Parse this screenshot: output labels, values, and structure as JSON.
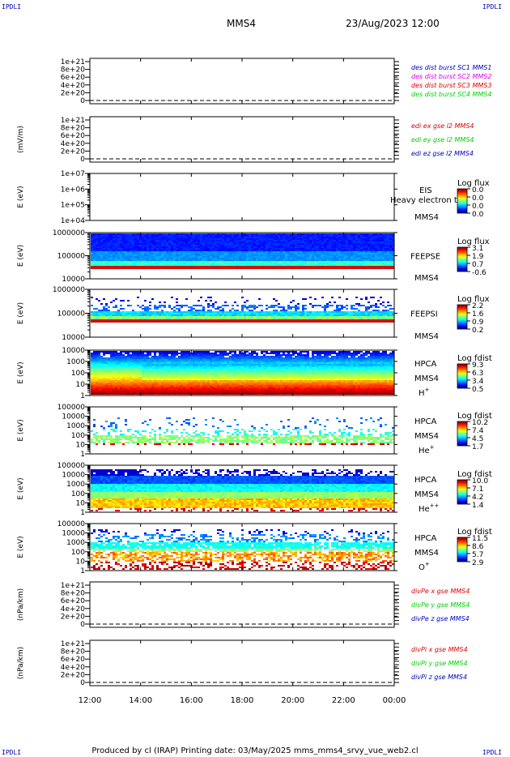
{
  "corner_label": "IPDLI",
  "header": {
    "spacecraft": "MMS4",
    "datetime": "23/Aug/2023 12:00"
  },
  "footer": {
    "text": "Produced by cl (IRAP)    Printing date: 03/May/2025    mms_mms4_srvy_vue_web2.cl"
  },
  "colors": {
    "axis": "#000000",
    "red": "#e00000",
    "green": "#00d000",
    "blue": "#0000c0",
    "magenta": "#e000e0"
  },
  "chart_data": {
    "type": "multi-panel time series / spectrogram",
    "x_ticks": [
      "12:00",
      "14:00",
      "16:00",
      "18:00",
      "20:00",
      "22:00",
      "00:00"
    ],
    "panels": [
      {
        "id": "p1",
        "kind": "line",
        "ylabel": "",
        "yticks": [
          "1e+21",
          "8e+20",
          "6e+20",
          "4e+20",
          "2e+20",
          "0"
        ],
        "legend": [
          {
            "text": "des dist burst SC1 MMS1",
            "color": "#0000c0"
          },
          {
            "text": "des dist burst SC2 MMS2",
            "color": "#e000e0"
          },
          {
            "text": "des dist burst SC3 MMS3",
            "color": "#e00000"
          },
          {
            "text": "des dist burst SC4 MMS4",
            "color": "#00d000"
          }
        ]
      },
      {
        "id": "p2",
        "kind": "line",
        "ylabel": "(mV/m)",
        "yticks": [
          "1e+21",
          "8e+20",
          "6e+20",
          "4e+20",
          "2e+20",
          "0"
        ],
        "legend": [
          {
            "text": "edi ex gse l2 MMS4",
            "color": "#e00000"
          },
          {
            "text": "edi ey gse l2 MMS4",
            "color": "#00d000"
          },
          {
            "text": "edi ez gse l2 MMS4",
            "color": "#0000c0"
          }
        ]
      },
      {
        "id": "p3",
        "kind": "spectrogram",
        "ylabel": "E (eV)",
        "yticks": [
          "1e+07",
          "1e+06",
          "1e+05",
          "1e+04"
        ],
        "instrument": [
          "EIS",
          "MMS4"
        ],
        "overlay_text": "Heavy electron tof",
        "cbar_title": "Log flux",
        "cbar_ticks": [
          "0.0",
          "0.0",
          "0.0",
          "0.0"
        ],
        "empty": true
      },
      {
        "id": "p4",
        "kind": "spectrogram",
        "ylabel": "E (eV)",
        "yticks": [
          "1000000",
          "100000",
          "10000"
        ],
        "instrument": [
          "FEEPSE",
          "MMS4"
        ],
        "cbar_title": "Log flux",
        "cbar_ticks": [
          "3.1",
          "1.9",
          "0.7",
          "-0.6"
        ],
        "empty": false
      },
      {
        "id": "p5",
        "kind": "spectrogram",
        "ylabel": "E (eV)",
        "yticks": [
          "1000000",
          "100000",
          "10000"
        ],
        "instrument": [
          "FEEPSI",
          "MMS4"
        ],
        "cbar_title": "Log flux",
        "cbar_ticks": [
          "2.2",
          "1.6",
          "0.9",
          "0.2"
        ],
        "empty": false
      },
      {
        "id": "p6",
        "kind": "spectrogram",
        "ylabel": "E (eV)",
        "yticks": [
          "10000",
          "1000",
          "100",
          "10",
          "1"
        ],
        "instrument": [
          "HPCA",
          "MMS4"
        ],
        "species": "H",
        "charge": "+",
        "cbar_title": "Log fdist",
        "cbar_ticks": [
          "9.3",
          "6.3",
          "3.4",
          "0.5"
        ],
        "empty": false
      },
      {
        "id": "p7",
        "kind": "spectrogram",
        "ylabel": "E (eV)",
        "yticks": [
          "100000",
          "10000",
          "1000",
          "100",
          "10",
          "1"
        ],
        "instrument": [
          "HPCA",
          "MMS4"
        ],
        "species": "He",
        "charge": "+",
        "cbar_title": "Log fdist",
        "cbar_ticks": [
          "10.2",
          "7.4",
          "4.5",
          "1.7"
        ],
        "empty": false
      },
      {
        "id": "p8",
        "kind": "spectrogram",
        "ylabel": "E (eV)",
        "yticks": [
          "100000",
          "10000",
          "1000",
          "100",
          "10",
          "1"
        ],
        "instrument": [
          "HPCA",
          "MMS4"
        ],
        "species": "He",
        "charge": "++",
        "cbar_title": "Log fdist",
        "cbar_ticks": [
          "10.0",
          "7.1",
          "4.2",
          "1.4"
        ],
        "empty": false
      },
      {
        "id": "p9",
        "kind": "spectrogram",
        "ylabel": "E (eV)",
        "yticks": [
          "100000",
          "10000",
          "1000",
          "100",
          "10",
          "1"
        ],
        "instrument": [
          "HPCA",
          "MMS4"
        ],
        "species": "O",
        "charge": "+",
        "cbar_title": "Log fdist",
        "cbar_ticks": [
          "11.5",
          "8.6",
          "5.7",
          "2.9"
        ],
        "empty": false
      },
      {
        "id": "p10",
        "kind": "line",
        "ylabel": "(nPa/km)",
        "yticks": [
          "1e+21",
          "8e+20",
          "6e+20",
          "4e+20",
          "2e+20",
          "0"
        ],
        "legend": [
          {
            "text": "divPe x gse MMS4",
            "color": "#e00000"
          },
          {
            "text": "divPe y gse MMS4",
            "color": "#00d000"
          },
          {
            "text": "divPe z gse MMS4",
            "color": "#0000c0"
          }
        ]
      },
      {
        "id": "p11",
        "kind": "line",
        "ylabel": "(nPa/km)",
        "yticks": [
          "1e+21",
          "8e+20",
          "6e+20",
          "4e+20",
          "2e+20",
          "0"
        ],
        "legend": [
          {
            "text": "divPi x gse MMS4",
            "color": "#e00000"
          },
          {
            "text": "divPi y gse MMS4",
            "color": "#00d000"
          },
          {
            "text": "divPi z gse MMS4",
            "color": "#0000c0"
          }
        ]
      }
    ]
  }
}
